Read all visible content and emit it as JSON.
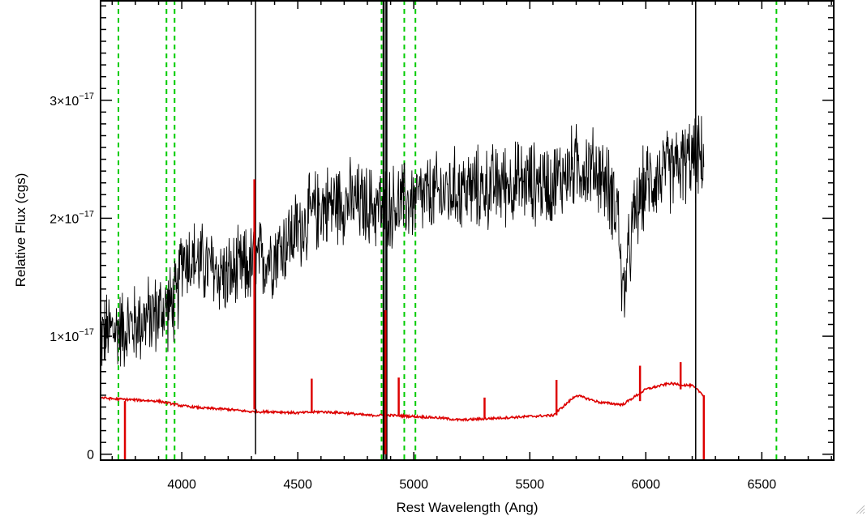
{
  "chart_data": {
    "type": "line",
    "title": "",
    "xlabel": "Rest Wavelength (Ang)",
    "ylabel": "Relative Flux (cgs)",
    "xlim": [
      3650,
      6810
    ],
    "ylim": [
      -0.05,
      3.85
    ],
    "y_unit_note": "y values in units of 1e-17",
    "x_ticks": [
      {
        "value": 4000,
        "label": "4000"
      },
      {
        "value": 4500,
        "label": "4500"
      },
      {
        "value": 5000,
        "label": "5000"
      },
      {
        "value": 5500,
        "label": "5500"
      },
      {
        "value": 6000,
        "label": "6000"
      },
      {
        "value": 6500,
        "label": "6500"
      }
    ],
    "y_ticks": [
      {
        "value": 0,
        "label": "0",
        "exp": ""
      },
      {
        "value": 1,
        "label": "1×10",
        "exp": "−17"
      },
      {
        "value": 2,
        "label": "2×10",
        "exp": "−17"
      },
      {
        "value": 3,
        "label": "3×10",
        "exp": "−17"
      }
    ],
    "reference_lines": [
      {
        "x": 3727,
        "color": "#00cc00"
      },
      {
        "x": 3934,
        "color": "#00cc00"
      },
      {
        "x": 3969,
        "color": "#00cc00"
      },
      {
        "x": 4861,
        "color": "#00cc00"
      },
      {
        "x": 4959,
        "color": "#00cc00"
      },
      {
        "x": 5007,
        "color": "#00cc00"
      },
      {
        "x": 6563,
        "color": "#00cc00"
      }
    ],
    "series": [
      {
        "color": "#000000",
        "style": "noisy",
        "noise_amp": 0.3,
        "x": [
          3650,
          3700,
          3800,
          3900,
          3980,
          4000,
          4100,
          4200,
          4300,
          4400,
          4500,
          4600,
          4700,
          4800,
          4900,
          5000,
          5100,
          5200,
          5300,
          5400,
          5500,
          5600,
          5700,
          5800,
          5850,
          5880,
          5900,
          5950,
          6000,
          6100,
          6200,
          6250
        ],
        "y": [
          1.0,
          1.05,
          1.1,
          1.2,
          1.3,
          1.7,
          1.6,
          1.5,
          1.6,
          1.7,
          1.9,
          2.1,
          2.15,
          2.1,
          2.1,
          2.15,
          2.2,
          2.25,
          2.25,
          2.3,
          2.3,
          2.3,
          2.45,
          2.4,
          2.2,
          2.1,
          1.3,
          2.0,
          2.3,
          2.4,
          2.5,
          2.5
        ]
      },
      {
        "color": "#dd0000",
        "style": "smooth",
        "x": [
          3650,
          3700,
          3800,
          3900,
          4000,
          4100,
          4200,
          4300,
          4400,
          4500,
          4600,
          4700,
          4800,
          4900,
          5000,
          5100,
          5200,
          5300,
          5400,
          5500,
          5600,
          5700,
          5800,
          5900,
          6000,
          6100,
          6200,
          6250
        ],
        "y": [
          0.48,
          0.47,
          0.46,
          0.45,
          0.41,
          0.39,
          0.38,
          0.36,
          0.36,
          0.35,
          0.36,
          0.35,
          0.33,
          0.33,
          0.32,
          0.31,
          0.29,
          0.3,
          0.31,
          0.32,
          0.33,
          0.5,
          0.44,
          0.42,
          0.55,
          0.6,
          0.58,
          0.5
        ]
      }
    ],
    "black_spikes": [
      {
        "x": 4318,
        "y0": 0.0,
        "y1": 3.85
      },
      {
        "x": 4870,
        "y0": -0.05,
        "y1": 3.85
      },
      {
        "x": 4882,
        "y0": -0.05,
        "y1": 3.85
      },
      {
        "x": 6215,
        "y0": -0.05,
        "y1": 3.85
      }
    ],
    "red_spikes": [
      {
        "x": 3755,
        "y0": -0.05,
        "y1": 0.45
      },
      {
        "x": 4313,
        "y0": 0.38,
        "y1": 2.33
      },
      {
        "x": 4560,
        "y0": 0.36,
        "y1": 0.64
      },
      {
        "x": 4878,
        "y0": 0.0,
        "y1": 1.22
      },
      {
        "x": 4935,
        "y0": 0.33,
        "y1": 0.65
      },
      {
        "x": 5305,
        "y0": 0.3,
        "y1": 0.48
      },
      {
        "x": 5615,
        "y0": 0.33,
        "y1": 0.63
      },
      {
        "x": 5975,
        "y0": 0.45,
        "y1": 0.75
      },
      {
        "x": 6150,
        "y0": 0.55,
        "y1": 0.78
      },
      {
        "x": 6250,
        "y0": -0.05,
        "y1": 0.5
      }
    ],
    "red_zero_after": {
      "x0": 6250,
      "x1": 6810,
      "y": -0.05
    }
  }
}
